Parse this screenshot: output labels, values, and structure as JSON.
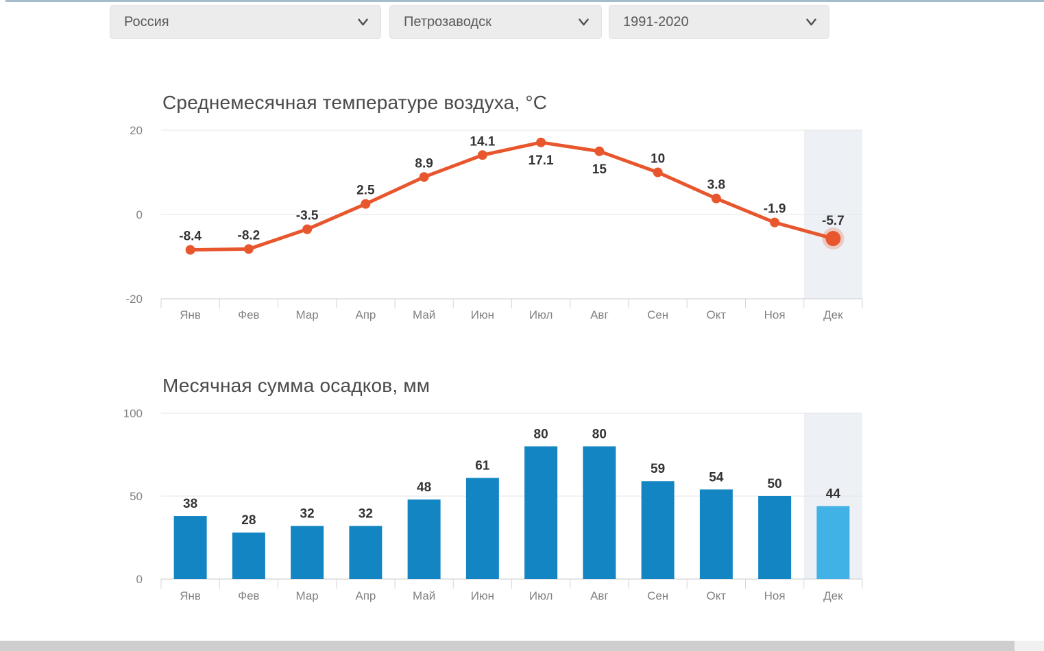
{
  "filters": {
    "country": "Россия",
    "city": "Петрозаводск",
    "period": "1991-2020"
  },
  "months": [
    "Янв",
    "Фев",
    "Мар",
    "Апр",
    "Май",
    "Июн",
    "Июл",
    "Авг",
    "Сен",
    "Окт",
    "Ноя",
    "Дек"
  ],
  "chart_data": [
    {
      "type": "line",
      "title": "Среднемесячная температуре воздуха, °C",
      "categories": [
        "Янв",
        "Фев",
        "Мар",
        "Апр",
        "Май",
        "Июн",
        "Июл",
        "Авг",
        "Сен",
        "Окт",
        "Ноя",
        "Дек"
      ],
      "values": [
        -8.4,
        -8.2,
        -3.5,
        2.5,
        8.9,
        14.1,
        17.1,
        15,
        10,
        3.8,
        -1.9,
        -5.7
      ],
      "point_labels": [
        "-8.4",
        "-8.2",
        "-3.5",
        "2.5",
        "8.9",
        "14.1",
        "17.1",
        "15",
        "10",
        "3.8",
        "-1.9",
        "-5.7"
      ],
      "labels_below_indices": [
        6,
        7
      ],
      "highlight_index": 11,
      "ylim": [
        -20,
        20
      ],
      "yticks": [
        20,
        0,
        -20
      ],
      "grid": true,
      "legend": "none",
      "line_color": "#e8562d",
      "highlight_halo_color": "#e8562d",
      "band_color": "#edf1f6"
    },
    {
      "type": "bar",
      "title": "Месячная сумма осадков, мм",
      "categories": [
        "Янв",
        "Фев",
        "Мар",
        "Апр",
        "Май",
        "Июн",
        "Июл",
        "Авг",
        "Сен",
        "Окт",
        "Ноя",
        "Дек"
      ],
      "values": [
        38,
        28,
        32,
        32,
        48,
        61,
        80,
        80,
        59,
        54,
        50,
        44
      ],
      "highlight_index": 11,
      "ylim": [
        0,
        100
      ],
      "yticks": [
        100,
        50,
        0
      ],
      "grid": true,
      "legend": "none",
      "bar_color": "#1385c2",
      "highlight_bar_color": "#41b2e5",
      "band_color": "#edf1f6"
    }
  ],
  "scrollbar": {
    "orientation": "horizontal"
  }
}
